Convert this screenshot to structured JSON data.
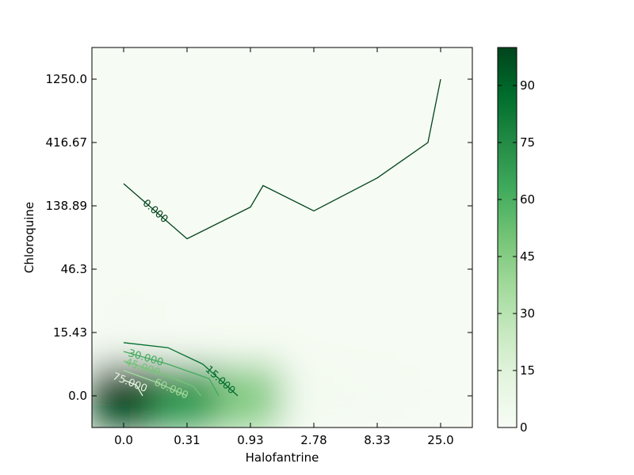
{
  "chart_data": {
    "type": "heatmap",
    "title": "",
    "xlabel": "Halofantrine",
    "ylabel": "Chloroquine",
    "x_tick_labels": [
      "0.0",
      "0.31",
      "0.93",
      "2.78",
      "8.33",
      "25.0"
    ],
    "y_tick_labels": [
      "0.0",
      "15.43",
      "46.3",
      "138.89",
      "416.67",
      "1250.0"
    ],
    "colormap": "Greens",
    "colorbar": {
      "min": 0,
      "max": 100,
      "ticks": [
        0,
        15,
        30,
        45,
        60,
        75,
        90
      ],
      "tick_labels": [
        "0",
        "15",
        "30",
        "45",
        "60",
        "75",
        "90"
      ]
    },
    "z_grid": [
      [
        100,
        70,
        45,
        3,
        2,
        1
      ],
      [
        2,
        1,
        1,
        1,
        1,
        1
      ],
      [
        1,
        1,
        1,
        1,
        1,
        1
      ],
      [
        1,
        1,
        1,
        1,
        1,
        1
      ],
      [
        1,
        1,
        1,
        1,
        1,
        1
      ],
      [
        1,
        1,
        1,
        1,
        1,
        1
      ]
    ],
    "contours": [
      {
        "level": 0,
        "label": "0.000",
        "color": "#00441b",
        "points": [
          [
            0,
            3.35
          ],
          [
            1,
            2.48
          ],
          [
            2,
            2.98
          ],
          [
            2.2,
            3.32
          ],
          [
            3,
            2.92
          ],
          [
            4,
            3.44
          ],
          [
            4.8,
            4.0
          ],
          [
            5,
            5.0
          ]
        ]
      },
      {
        "level": 15,
        "label": "15.000",
        "color": "#006d2c",
        "points": [
          [
            0,
            0.84
          ],
          [
            0.7,
            0.76
          ],
          [
            1.25,
            0.5
          ],
          [
            1.8,
            0.0
          ]
        ]
      },
      {
        "level": 30,
        "label": "30.000",
        "color": "#41ab5d",
        "points": [
          [
            0,
            0.7
          ],
          [
            0.7,
            0.5
          ],
          [
            1.35,
            0.27
          ],
          [
            1.5,
            0.0
          ]
        ]
      },
      {
        "level": 45,
        "label": "45.000",
        "color": "#74c476",
        "points": [
          [
            0,
            0.55
          ],
          [
            0.6,
            0.35
          ],
          [
            1.1,
            0.15
          ],
          [
            1.22,
            0.0
          ]
        ]
      },
      {
        "level": 60,
        "label": "60.000",
        "color": "#a1d99b",
        "points": [
          [
            0,
            0.4
          ],
          [
            0.5,
            0.22
          ],
          [
            1.0,
            0.0
          ]
        ]
      },
      {
        "level": 75,
        "label": "75.000",
        "color": "#e5f5e0",
        "points": [
          [
            0,
            0.25
          ],
          [
            0.2,
            0.17
          ],
          [
            0.3,
            0.0
          ]
        ]
      }
    ]
  },
  "colors": {
    "background": "#f7fcf5",
    "colormap_stops": [
      "#f7fcf5",
      "#e5f5e0",
      "#c7e9c0",
      "#a1d99b",
      "#74c476",
      "#41ab5d",
      "#238b45",
      "#006d2c",
      "#00441b"
    ]
  }
}
